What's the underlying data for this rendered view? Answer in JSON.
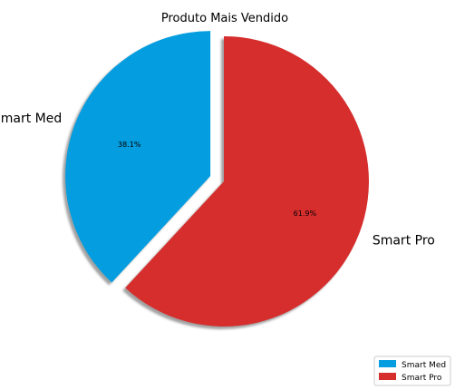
{
  "chart_data": {
    "type": "pie",
    "title": "Produto Mais Vendido",
    "categories": [
      "Smart Med",
      "Smart Pro"
    ],
    "values": [
      38.1,
      61.9
    ],
    "percent_labels": [
      "38.1%",
      "61.9%"
    ],
    "colors": [
      "#049ddf",
      "#d62d2d"
    ],
    "explode": [
      0.1,
      0
    ],
    "shadow": true,
    "start_angle_deg": 90,
    "legend_position": "lower-right"
  }
}
